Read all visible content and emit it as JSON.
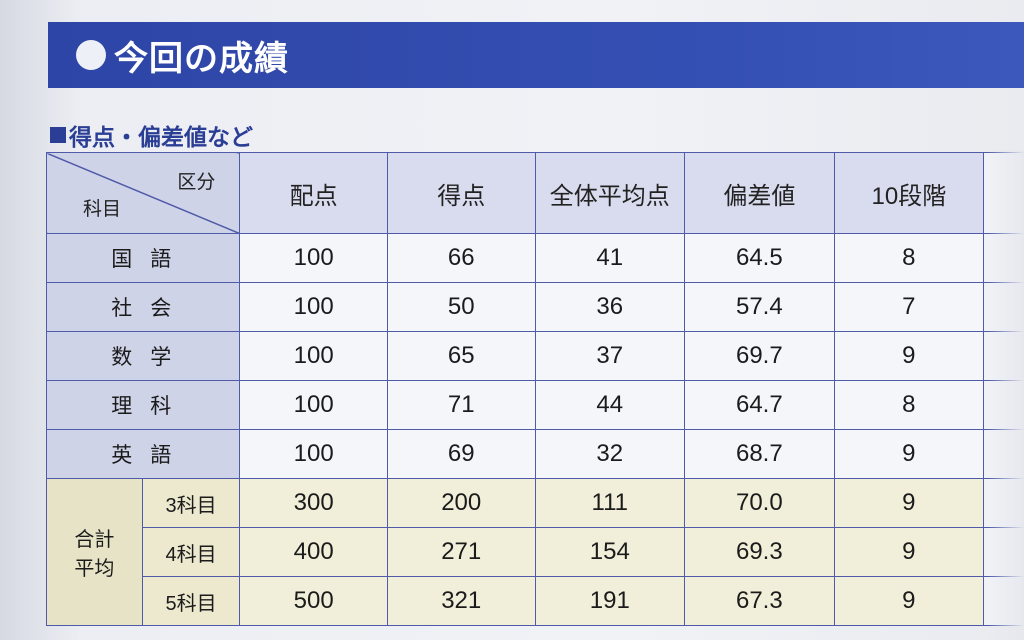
{
  "banner": {
    "title": "今回の成績"
  },
  "section": {
    "heading": "得点・偏差値など"
  },
  "table": {
    "corner_top": "区分",
    "corner_bottom": "科目",
    "headers": [
      "配点",
      "得点",
      "全体平均点",
      "偏差値",
      "10段階"
    ],
    "subjects": [
      {
        "name": "国語",
        "values": [
          "100",
          "66",
          "41",
          "64.5",
          "8"
        ]
      },
      {
        "name": "社会",
        "values": [
          "100",
          "50",
          "36",
          "57.4",
          "7"
        ]
      },
      {
        "name": "数学",
        "values": [
          "100",
          "65",
          "37",
          "69.7",
          "9"
        ]
      },
      {
        "name": "理科",
        "values": [
          "100",
          "71",
          "44",
          "64.7",
          "8"
        ]
      },
      {
        "name": "英語",
        "values": [
          "100",
          "69",
          "32",
          "68.7",
          "9"
        ]
      }
    ],
    "totals_label_line1": "合計",
    "totals_label_line2": "平均",
    "totals": [
      {
        "name": "3科目",
        "values": [
          "300",
          "200",
          "111",
          "70.0",
          "9"
        ]
      },
      {
        "name": "4科目",
        "values": [
          "400",
          "271",
          "154",
          "69.3",
          "9"
        ]
      },
      {
        "name": "5科目",
        "values": [
          "500",
          "321",
          "191",
          "67.3",
          "9"
        ]
      }
    ]
  }
}
